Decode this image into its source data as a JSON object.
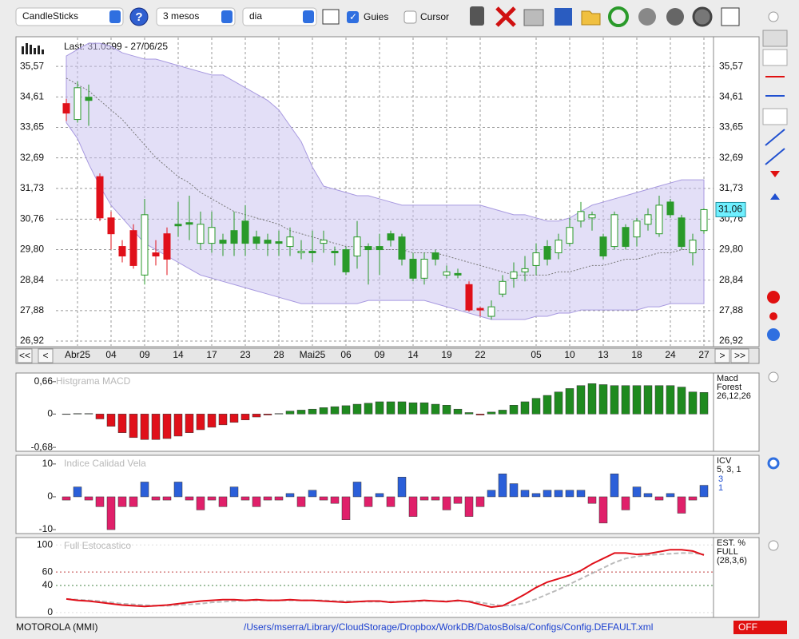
{
  "toolbar": {
    "chart_type": "CandleSticks",
    "period": "3 mesos",
    "interval": "dia",
    "guides": "Guies",
    "cursor": "Cursor"
  },
  "price_panel": {
    "last": "Last: 31.0599 - 27/06/25",
    "current": "31,06",
    "ylim": [
      26.77,
      36.48
    ],
    "yticks": [
      {
        "value": 35.57,
        "label": "35,57"
      },
      {
        "value": 34.61,
        "label": "34,61"
      },
      {
        "value": 33.65,
        "label": "33,65"
      },
      {
        "value": 32.69,
        "label": "32,69"
      },
      {
        "value": 31.73,
        "label": "31,73"
      },
      {
        "value": 30.76,
        "label": "30,76"
      },
      {
        "value": 29.8,
        "label": "29,80"
      },
      {
        "value": 28.84,
        "label": "28,84"
      },
      {
        "value": 27.88,
        "label": "27,88"
      },
      {
        "value": 26.92,
        "label": "26,92"
      }
    ],
    "dates": [
      null,
      "Abr25",
      null,
      null,
      "04",
      null,
      null,
      "09",
      null,
      null,
      "14",
      null,
      null,
      "17",
      null,
      null,
      "23",
      null,
      null,
      "28",
      null,
      null,
      "Mai25",
      null,
      null,
      "06",
      null,
      null,
      "09",
      null,
      null,
      "14",
      null,
      null,
      "19",
      null,
      null,
      "22",
      null,
      null,
      null,
      null,
      "05",
      null,
      null,
      "10",
      null,
      null,
      "13",
      null,
      null,
      "18",
      null,
      null,
      "24",
      null,
      null,
      "27"
    ],
    "open": [
      34.4,
      33.9,
      34.5,
      32.1,
      30.8,
      29.9,
      30.4,
      29.0,
      29.7,
      30.3,
      30.6,
      30.65,
      30.0,
      30.0,
      30.1,
      30.0,
      30.0,
      30.0,
      30.1,
      30.0,
      29.9,
      29.7,
      29.75,
      30.0,
      29.75,
      29.8,
      29.6,
      29.9,
      29.8,
      30.3,
      30.2,
      29.5,
      28.9,
      29.5,
      29.0,
      29.05,
      28.7,
      27.95,
      27.7,
      28.4,
      28.9,
      29.2,
      29.3,
      29.9,
      29.7,
      30.0,
      30.7,
      30.8,
      30.2,
      29.9,
      30.5,
      30.2,
      30.6,
      30.3,
      31.3,
      30.8,
      29.7,
      30.4
    ],
    "high": [
      34.55,
      35.1,
      35.0,
      32.2,
      31.0,
      30.1,
      30.6,
      31.4,
      30.1,
      30.5,
      31.3,
      31.5,
      31.0,
      31.0,
      30.3,
      31.0,
      31.2,
      30.4,
      30.3,
      30.4,
      30.5,
      30.1,
      30.4,
      30.4,
      29.9,
      29.9,
      30.7,
      30.0,
      30.3,
      30.4,
      30.3,
      29.7,
      29.7,
      29.8,
      29.3,
      29.2,
      28.8,
      28.0,
      28.2,
      29.0,
      29.4,
      29.6,
      30.0,
      30.1,
      30.3,
      30.8,
      31.3,
      31.0,
      30.3,
      31.0,
      30.6,
      30.8,
      31.1,
      31.5,
      31.4,
      30.9,
      30.3,
      31.1
    ],
    "low": [
      33.85,
      33.8,
      33.7,
      30.7,
      29.8,
      29.4,
      29.2,
      28.7,
      29.3,
      29.0,
      30.2,
      30.1,
      29.8,
      29.7,
      29.6,
      29.6,
      29.6,
      29.8,
      29.6,
      29.6,
      29.6,
      29.5,
      29.4,
      29.7,
      29.3,
      29.0,
      29.2,
      28.7,
      29.0,
      29.9,
      29.3,
      28.8,
      28.7,
      29.3,
      28.9,
      28.9,
      27.85,
      27.7,
      27.6,
      28.3,
      28.6,
      28.8,
      29.0,
      29.3,
      29.5,
      29.9,
      30.5,
      30.4,
      29.5,
      29.8,
      29.8,
      29.9,
      30.4,
      30.2,
      30.8,
      29.8,
      29.3,
      30.3
    ],
    "close": [
      34.1,
      34.9,
      34.6,
      30.8,
      30.3,
      29.6,
      29.3,
      30.9,
      29.6,
      29.5,
      30.55,
      30.6,
      30.6,
      30.5,
      30.0,
      30.4,
      30.7,
      30.2,
      30.0,
      30.05,
      30.2,
      29.75,
      29.7,
      30.1,
      29.7,
      29.1,
      30.2,
      29.8,
      29.9,
      30.1,
      29.5,
      28.9,
      29.5,
      29.7,
      29.1,
      29.0,
      27.9,
      27.9,
      28.0,
      28.8,
      29.1,
      29.1,
      29.7,
      29.5,
      30.1,
      30.5,
      31.0,
      30.9,
      29.6,
      30.9,
      29.9,
      30.7,
      30.9,
      31.2,
      30.9,
      29.9,
      30.1,
      31.06
    ],
    "fill": [
      "#e0101a",
      "#ffffff",
      "#2a9a2a",
      "#e0101a",
      "#e0101a",
      "#e0101a",
      "#e0101a",
      "#ffffff",
      "#e0101a",
      "#e0101a",
      "#2a9a2a",
      "#2a9a2a",
      "#ffffff",
      "#ffffff",
      "#2a9a2a",
      "#2a9a2a",
      "#2a9a2a",
      "#2a9a2a",
      "#2a9a2a",
      "#2a9a2a",
      "#ffffff",
      "#ffffff",
      "#2a9a2a",
      "#ffffff",
      "#2a9a2a",
      "#2a9a2a",
      "#ffffff",
      "#2a9a2a",
      "#2a9a2a",
      "#2a9a2a",
      "#2a9a2a",
      "#2a9a2a",
      "#ffffff",
      "#2a9a2a",
      "#ffffff",
      "#2a9a2a",
      "#e0101a",
      "#e0101a",
      "#ffffff",
      "#ffffff",
      "#ffffff",
      "#ffffff",
      "#ffffff",
      "#2a9a2a",
      "#ffffff",
      "#ffffff",
      "#ffffff",
      "#ffffff",
      "#2a9a2a",
      "#ffffff",
      "#2a9a2a",
      "#ffffff",
      "#ffffff",
      "#ffffff",
      "#2a9a2a",
      "#2a9a2a",
      "#ffffff",
      "#ffffff"
    ],
    "upper": [
      35.9,
      36.1,
      36.3,
      36.3,
      36.2,
      36.0,
      35.9,
      35.8,
      35.8,
      35.7,
      35.6,
      35.5,
      35.4,
      35.3,
      35.3,
      35.1,
      34.9,
      34.7,
      34.5,
      34.2,
      33.7,
      33.2,
      32.4,
      31.8,
      31.7,
      31.6,
      31.5,
      31.5,
      31.4,
      31.3,
      31.2,
      31.2,
      31.2,
      31.2,
      31.2,
      31.2,
      31.2,
      31.2,
      31.1,
      31.0,
      30.9,
      30.9,
      30.8,
      30.7,
      30.7,
      30.8,
      31.0,
      31.2,
      31.3,
      31.4,
      31.5,
      31.6,
      31.7,
      31.8,
      31.9,
      32.0,
      32.0,
      32.0
    ],
    "lower": [
      33.8,
      33.3,
      32.5,
      31.8,
      31.2,
      30.8,
      30.4,
      30.0,
      29.8,
      29.6,
      29.4,
      29.2,
      29.0,
      28.9,
      28.8,
      28.7,
      28.6,
      28.5,
      28.4,
      28.3,
      28.2,
      28.1,
      28.1,
      28.1,
      28.1,
      28.1,
      28.1,
      28.2,
      28.2,
      28.2,
      28.2,
      28.2,
      28.2,
      28.1,
      28.0,
      27.9,
      27.8,
      27.7,
      27.6,
      27.6,
      27.6,
      27.6,
      27.7,
      27.7,
      27.8,
      27.8,
      27.9,
      27.9,
      27.9,
      27.9,
      27.9,
      27.9,
      28.0,
      28.0,
      28.1,
      28.1,
      28.1,
      28.1
    ],
    "ma": [
      35.2,
      35.0,
      34.8,
      34.5,
      34.2,
      33.9,
      33.5,
      33.1,
      32.7,
      32.4,
      32.1,
      31.9,
      31.6,
      31.4,
      31.2,
      31.0,
      30.9,
      30.8,
      30.7,
      30.6,
      30.4,
      30.3,
      30.2,
      30.1,
      30.0,
      29.9,
      29.9,
      29.9,
      29.8,
      29.8,
      29.8,
      29.7,
      29.7,
      29.7,
      29.6,
      29.5,
      29.4,
      29.3,
      29.2,
      29.1,
      29.0,
      29.0,
      29.0,
      29.0,
      29.1,
      29.1,
      29.2,
      29.3,
      29.3,
      29.4,
      29.5,
      29.5,
      29.6,
      29.7,
      29.7,
      29.8,
      29.8,
      29.8
    ]
  },
  "nav": [
    "<<",
    "<",
    ">",
    ">>"
  ],
  "macd": {
    "title": "Histgrama MACD",
    "legend": [
      "Macd",
      "Forest",
      "26,12,26"
    ],
    "ylim": [
      -0.76,
      0.82
    ],
    "yticks": [
      {
        "value": 0.66,
        "label": "0,66"
      },
      0,
      {
        "value": -0.68,
        "label": "-0,68"
      }
    ],
    "positive_color": "#1f8a1f",
    "negative_color": "#e0101a",
    "values": [
      0,
      0.01,
      0.01,
      -0.1,
      -0.25,
      -0.38,
      -0.48,
      -0.52,
      -0.52,
      -0.5,
      -0.45,
      -0.38,
      -0.32,
      -0.27,
      -0.22,
      -0.17,
      -0.12,
      -0.06,
      -0.02,
      0.01,
      0.06,
      0.08,
      0.1,
      0.13,
      0.15,
      0.17,
      0.2,
      0.22,
      0.25,
      0.25,
      0.25,
      0.23,
      0.23,
      0.2,
      0.18,
      0.1,
      0.03,
      -0.02,
      0.04,
      0.08,
      0.18,
      0.25,
      0.32,
      0.38,
      0.45,
      0.52,
      0.58,
      0.62,
      0.6,
      0.58,
      0.58,
      0.58,
      0.58,
      0.58,
      0.58,
      0.55,
      0.45,
      0.44
    ]
  },
  "icv": {
    "title": "Indice Calidad Vela",
    "legend": [
      "ICV",
      "5, 3, 1",
      "3",
      "1"
    ],
    "ylim": [
      -11.2,
      12.4
    ],
    "yticks": [
      10,
      0,
      -10
    ],
    "positive_color": "#2b5fd9",
    "negative_color": "#e0206a",
    "values": [
      -1,
      3,
      -1,
      -3,
      -10,
      -3,
      -3,
      4.5,
      -1,
      -1,
      4.5,
      -1,
      -4,
      -1,
      -3,
      3,
      -1,
      -3,
      -1,
      -1,
      1,
      -3,
      2,
      -1,
      -2,
      -7,
      4.5,
      -3,
      1,
      -3,
      6,
      -6,
      -1,
      -1,
      -4,
      -2,
      -6,
      -3,
      2,
      7,
      4,
      2,
      1,
      2,
      2,
      2,
      2,
      -2,
      -8,
      7,
      -4,
      3,
      1,
      -1,
      1,
      -5,
      -1,
      3.5
    ]
  },
  "stoch": {
    "title": "Full Estocastico",
    "legend": [
      "EST. %",
      "FULL",
      "(28,3,6)"
    ],
    "ylim": [
      -7.3,
      109.8
    ],
    "yticks": [
      100,
      60,
      40,
      0
    ],
    "k_color": "#e0101a",
    "d_color": "#bbbbbb",
    "k": [
      20,
      18,
      17,
      15,
      13,
      11,
      10,
      9,
      10,
      11,
      13,
      15,
      17,
      18,
      19,
      19,
      18,
      19,
      18,
      18,
      19,
      18,
      18,
      17,
      16,
      15,
      16,
      17,
      17,
      15,
      16,
      17,
      18,
      17,
      16,
      18,
      16,
      12,
      8,
      10,
      18,
      27,
      37,
      45,
      50,
      55,
      62,
      72,
      80,
      88,
      88,
      86,
      87,
      90,
      93,
      93,
      91,
      85
    ],
    "d": [
      20,
      19,
      18,
      17,
      15,
      13,
      12,
      11,
      10,
      10,
      11,
      12,
      13,
      15,
      16,
      17,
      18,
      18,
      18,
      18,
      18,
      18,
      18,
      18,
      17,
      17,
      16,
      16,
      16,
      16,
      16,
      16,
      17,
      17,
      17,
      17,
      17,
      15,
      12,
      10,
      11,
      14,
      20,
      27,
      34,
      42,
      50,
      58,
      66,
      74,
      80,
      83,
      85,
      86,
      87,
      88,
      88,
      86
    ]
  },
  "footer": {
    "symbol": "MOTOROLA (MMI)",
    "path": "/Users/mserra/Library/CloudStorage/Dropbox/WorkDB/DatosBolsa/Configs/Config.DEFAULT.xml",
    "status": "OFF"
  }
}
